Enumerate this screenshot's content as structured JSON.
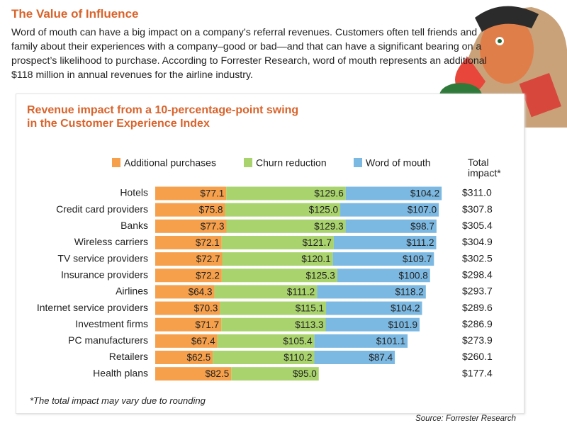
{
  "title": "The Value of Influence",
  "intro": "Word of mouth can have a big impact on a company’s referral revenues. Customers often tell friends and family about their experiences with a company–good or bad—and that can have a significant bearing on a prospect’s likelihood to purchase. According to Forrester Research, word of mouth represents an additional $118 million in annual revenues for the airline industry.",
  "chart_data": {
    "type": "stacked-bar-horizontal",
    "title": "Revenue impact from a 10-percentage-point swing in the Customer Experience Index",
    "categories": [
      "Hotels",
      "Credit card providers",
      "Banks",
      "Wireless carriers",
      "TV service providers",
      "Insurance providers",
      "Airlines",
      "Internet service providers",
      "Investment firms",
      "PC manufacturers",
      "Retailers",
      "Health plans"
    ],
    "series": [
      {
        "name": "Additional purchases",
        "color": "#f6a04b",
        "values": [
          77.1,
          75.8,
          77.3,
          72.1,
          72.7,
          72.2,
          64.3,
          70.3,
          71.7,
          67.4,
          62.5,
          82.5
        ],
        "value_labels": [
          "$77.1",
          "$75.8",
          "$77.3",
          "$72.1",
          "$72.7",
          "$72.2",
          "$64.3",
          "$70.3",
          "$71.7",
          "$67.4",
          "$62.5",
          "$82.5"
        ]
      },
      {
        "name": "Churn reduction",
        "color": "#a9d36c",
        "values": [
          129.6,
          125.0,
          129.3,
          121.7,
          120.1,
          125.3,
          111.2,
          115.1,
          113.3,
          105.4,
          110.2,
          95.0
        ],
        "value_labels": [
          "$129.6",
          "$125.0",
          "$129.3",
          "$121.7",
          "$120.1",
          "$125.3",
          "$111.2",
          "$115.1",
          "$113.3",
          "$105.4",
          "$110.2",
          "$95.0"
        ]
      },
      {
        "name": "Word of mouth",
        "color": "#7cb9e2",
        "values": [
          104.2,
          107.0,
          98.7,
          111.2,
          109.7,
          100.8,
          118.2,
          104.2,
          101.9,
          101.1,
          87.4,
          null
        ],
        "value_labels": [
          "$104.2",
          "$107.0",
          "$98.7",
          "$111.2",
          "$109.7",
          "$100.8",
          "$118.2",
          "$104.2",
          "$101.9",
          "$101.1",
          "$87.4",
          null
        ]
      }
    ],
    "totals": {
      "name": "Total impact*",
      "values": [
        311.0,
        307.8,
        305.4,
        304.9,
        302.5,
        298.4,
        293.7,
        289.6,
        286.9,
        273.9,
        260.1,
        177.4
      ],
      "value_labels": [
        "$311.0",
        "$307.8",
        "$305.4",
        "$304.9",
        "$302.5",
        "$298.4",
        "$293.7",
        "$289.6",
        "$286.9",
        "$273.9",
        "$260.1",
        "$177.4"
      ]
    },
    "footnote": "*The total impact may vary due to rounding",
    "source": "Source: Forrester Research"
  }
}
